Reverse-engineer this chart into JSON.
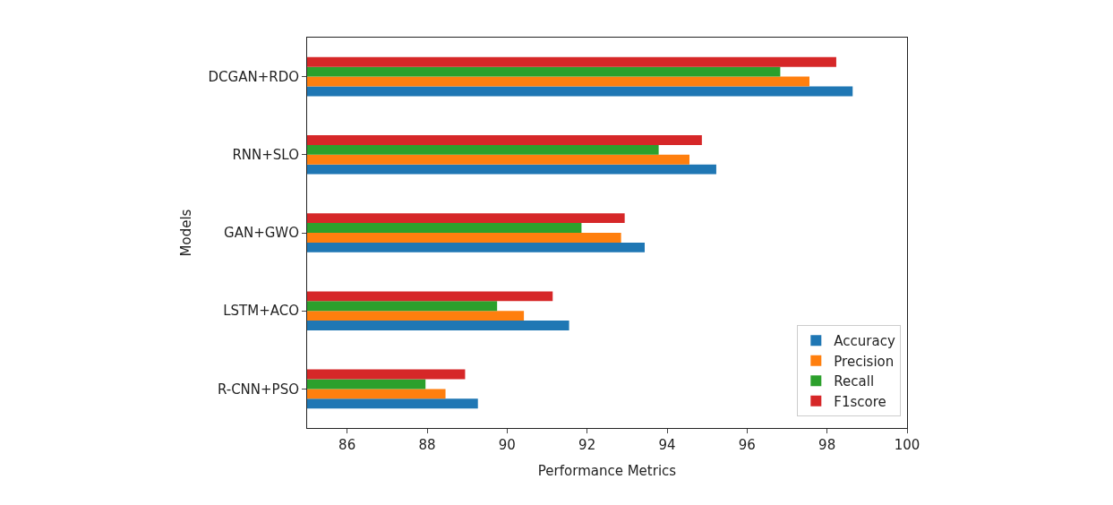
{
  "chart_data": {
    "type": "bar",
    "orientation": "horizontal",
    "xlabel": "Performance Metrics",
    "ylabel": "Models",
    "categories": [
      "DCGAN+RDO",
      "RNN+SLO",
      "GAN+GWO",
      "LSTM+ACO",
      "R-CNN+PSO"
    ],
    "series": [
      {
        "name": "Accuracy",
        "color": "#1f77b4",
        "values": [
          98.64,
          95.23,
          93.44,
          91.55,
          89.27
        ]
      },
      {
        "name": "Precision",
        "color": "#ff7f0e",
        "values": [
          97.56,
          94.56,
          92.85,
          90.42,
          88.46
        ]
      },
      {
        "name": "Recall",
        "color": "#2ca02c",
        "values": [
          96.83,
          93.79,
          91.86,
          89.75,
          87.96
        ]
      },
      {
        "name": "F1score",
        "color": "#d62728",
        "values": [
          98.23,
          94.87,
          92.94,
          91.14,
          88.95
        ]
      }
    ],
    "xlim": [
      85,
      100
    ],
    "xticks": [
      86,
      88,
      90,
      92,
      94,
      96,
      98,
      100
    ],
    "legend": "bottom right"
  }
}
